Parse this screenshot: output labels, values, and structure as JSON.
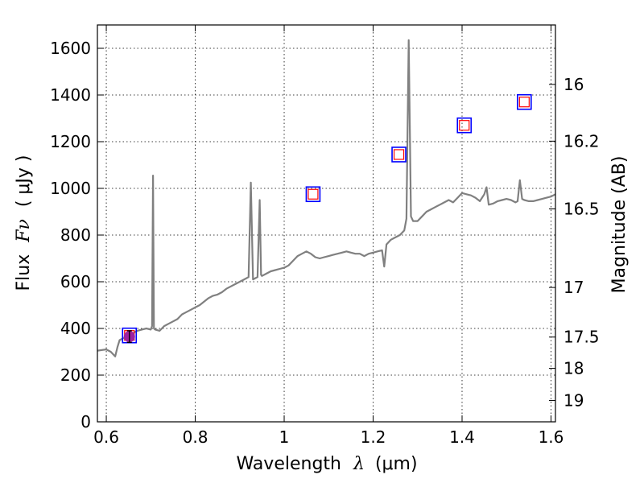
{
  "chart_data": {
    "type": "line",
    "xlabel_prefix": "Wavelength",
    "xlabel_symbol": "λ",
    "xlabel_unit": "(μm)",
    "ylabel_prefix": "Flux",
    "ylabel_symbol": "Fν",
    "ylabel_unit": "( μJy )",
    "y2label": "Magnitude (AB)",
    "xlim": [
      0.58,
      1.61
    ],
    "ylim": [
      0,
      1700
    ],
    "grid": true,
    "x_ticks": [
      {
        "value": 0.6,
        "label": "0.6"
      },
      {
        "value": 0.8,
        "label": "0.8"
      },
      {
        "value": 1.0,
        "label": "1"
      },
      {
        "value": 1.2,
        "label": "1.2"
      },
      {
        "value": 1.4,
        "label": "1.4"
      },
      {
        "value": 1.6,
        "label": "1.6"
      }
    ],
    "y_ticks": [
      {
        "value": 0,
        "label": "0"
      },
      {
        "value": 200,
        "label": "200"
      },
      {
        "value": 400,
        "label": "400"
      },
      {
        "value": 600,
        "label": "600"
      },
      {
        "value": 800,
        "label": "800"
      },
      {
        "value": 1000,
        "label": "1000"
      },
      {
        "value": 1200,
        "label": "1200"
      },
      {
        "value": 1400,
        "label": "1400"
      },
      {
        "value": 1600,
        "label": "1600"
      }
    ],
    "y2_ticks": [
      {
        "mag": 16,
        "label": "16"
      },
      {
        "mag": 16.2,
        "label": "16.2"
      },
      {
        "mag": 16.5,
        "label": "16.5"
      },
      {
        "mag": 17,
        "label": "17"
      },
      {
        "mag": 17.5,
        "label": "17.5"
      },
      {
        "mag": 18,
        "label": "18"
      },
      {
        "mag": 19,
        "label": "19"
      }
    ],
    "series": [
      {
        "color": "#808080",
        "x": [
          0.58,
          0.6,
          0.61,
          0.62,
          0.625,
          0.63,
          0.64,
          0.65,
          0.66,
          0.67,
          0.68,
          0.69,
          0.7,
          0.703,
          0.705,
          0.707,
          0.71,
          0.72,
          0.73,
          0.74,
          0.75,
          0.76,
          0.77,
          0.78,
          0.79,
          0.8,
          0.81,
          0.82,
          0.83,
          0.84,
          0.85,
          0.86,
          0.87,
          0.88,
          0.89,
          0.9,
          0.91,
          0.92,
          0.925,
          0.93,
          0.935,
          0.94,
          0.945,
          0.948,
          0.95,
          0.96,
          0.97,
          0.98,
          0.99,
          1.0,
          1.01,
          1.02,
          1.03,
          1.04,
          1.05,
          1.06,
          1.07,
          1.08,
          1.09,
          1.1,
          1.11,
          1.12,
          1.13,
          1.14,
          1.15,
          1.16,
          1.17,
          1.18,
          1.19,
          1.2,
          1.21,
          1.22,
          1.225,
          1.23,
          1.24,
          1.25,
          1.26,
          1.27,
          1.275,
          1.28,
          1.285,
          1.29,
          1.3,
          1.31,
          1.32,
          1.33,
          1.34,
          1.35,
          1.36,
          1.37,
          1.38,
          1.39,
          1.4,
          1.41,
          1.42,
          1.43,
          1.44,
          1.45,
          1.455,
          1.46,
          1.47,
          1.48,
          1.49,
          1.5,
          1.51,
          1.52,
          1.525,
          1.53,
          1.535,
          1.54,
          1.55,
          1.56,
          1.57,
          1.58,
          1.59,
          1.6,
          1.61
        ],
        "y": [
          305,
          310,
          300,
          280,
          320,
          350,
          360,
          365,
          380,
          390,
          395,
          400,
          395,
          410,
          1055,
          400,
          395,
          390,
          410,
          420,
          430,
          440,
          460,
          470,
          480,
          490,
          500,
          515,
          530,
          540,
          545,
          555,
          570,
          580,
          590,
          600,
          610,
          620,
          1025,
          610,
          615,
          620,
          950,
          630,
          625,
          635,
          645,
          650,
          655,
          660,
          670,
          690,
          710,
          720,
          730,
          720,
          705,
          700,
          705,
          710,
          715,
          720,
          725,
          730,
          725,
          720,
          720,
          710,
          720,
          725,
          730,
          735,
          665,
          760,
          780,
          790,
          800,
          820,
          870,
          1635,
          880,
          860,
          860,
          880,
          900,
          910,
          920,
          930,
          940,
          950,
          940,
          960,
          980,
          975,
          970,
          960,
          945,
          975,
          1005,
          930,
          935,
          945,
          950,
          955,
          950,
          940,
          945,
          1035,
          955,
          950,
          945,
          945,
          950,
          955,
          960,
          965,
          975
        ]
      }
    ],
    "photometry": [
      {
        "x": 0.652,
        "y": 370
      },
      {
        "x": 1.065,
        "y": 975
      },
      {
        "x": 1.258,
        "y": 1145
      },
      {
        "x": 1.405,
        "y": 1270
      },
      {
        "x": 1.54,
        "y": 1370
      }
    ],
    "model_point": {
      "x": 0.652,
      "y": 365,
      "error": 25,
      "color": "#a020a0"
    }
  }
}
